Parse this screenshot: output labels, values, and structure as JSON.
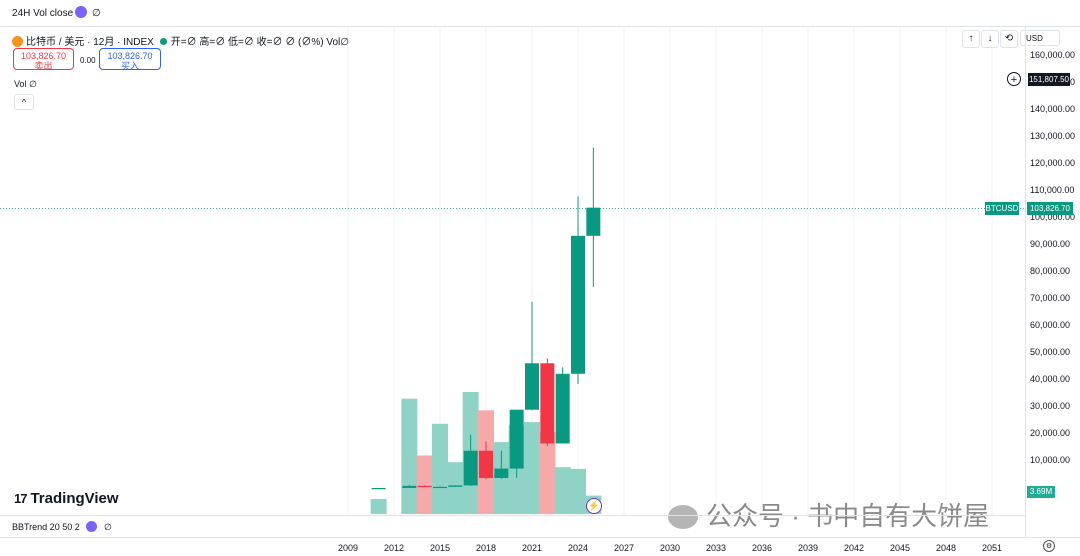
{
  "topbar": {
    "title": "24H Vol close",
    "value": "∅"
  },
  "legend": {
    "symbol": "比特币 / 美元 · 12月 · INDEX",
    "ohlc": "开=∅ 高=∅ 低=∅ 收=∅ ∅ (∅%) Vol∅",
    "sell_price": "103,826.70",
    "sell_label": "卖出",
    "spread": "0.00",
    "buy_price": "103,826.70",
    "buy_label": "买入"
  },
  "vol_legend": "Vol ∅",
  "toolbar": {
    "up": "↑",
    "down": "↓",
    "loop": "⟲",
    "currency": "USD"
  },
  "price_axis": {
    "labels": [
      "160,000.00",
      "150,000.00",
      "140,000.00",
      "130,000.00",
      "120,000.00",
      "110,000.00",
      "100,000.00",
      "90,000.00",
      "80,000.00",
      "70,000.00",
      "60,000.00",
      "50,000.00",
      "40,000.00",
      "30,000.00",
      "20,000.00",
      "10,000.00"
    ],
    "crosshair_value": "151,807.50",
    "last_price": "103,826.70",
    "symbol_tag": "BTCUSD",
    "volume_tag": "3.69M"
  },
  "time_axis": [
    "2009",
    "2012",
    "2015",
    "2018",
    "2021",
    "2024",
    "2027",
    "2030",
    "2033",
    "2036",
    "2039",
    "2042",
    "2045",
    "2048",
    "2051"
  ],
  "bottom_indicator": {
    "label": "BBTrend 20 50 2",
    "value": "∅"
  },
  "logo_text": "TradingView",
  "watermark": "公众号 · 书中自有大饼屋",
  "chart_data": {
    "type": "candlestick",
    "price_unit": "USD",
    "ylim": [
      0,
      160000
    ],
    "last_price": 103826.7,
    "candles": [
      {
        "year": 2011,
        "open": 0.3,
        "high": 32,
        "low": 0.3,
        "close": 5,
        "volume": 0.9
      },
      {
        "year": 2013,
        "open": 13,
        "high": 1150,
        "low": 13,
        "close": 800,
        "volume": 6.9
      },
      {
        "year": 2014,
        "open": 800,
        "high": 1000,
        "low": 300,
        "close": 320,
        "volume": 3.5
      },
      {
        "year": 2015,
        "open": 320,
        "high": 500,
        "low": 170,
        "close": 430,
        "volume": 5.4
      },
      {
        "year": 2016,
        "open": 430,
        "high": 1000,
        "low": 360,
        "close": 960,
        "volume": 3.1
      },
      {
        "year": 2017,
        "open": 960,
        "high": 19700,
        "low": 780,
        "close": 13800,
        "volume": 7.3
      },
      {
        "year": 2018,
        "open": 13800,
        "high": 17200,
        "low": 3200,
        "close": 3700,
        "volume": 6.2
      },
      {
        "year": 2019,
        "open": 3700,
        "high": 13800,
        "low": 3400,
        "close": 7200,
        "volume": 4.3
      },
      {
        "year": 2020,
        "open": 7200,
        "high": 29000,
        "low": 3800,
        "close": 29000,
        "volume": 5.3
      },
      {
        "year": 2021,
        "open": 29000,
        "high": 69000,
        "low": 28800,
        "close": 46200,
        "volume": 5.5
      },
      {
        "year": 2022,
        "open": 46200,
        "high": 48000,
        "low": 15500,
        "close": 16500,
        "volume": 4.9
      },
      {
        "year": 2023,
        "open": 16500,
        "high": 44700,
        "low": 16500,
        "close": 42300,
        "volume": 2.8
      },
      {
        "year": 2024,
        "open": 42300,
        "high": 108000,
        "low": 38500,
        "close": 93400,
        "volume": 2.7
      },
      {
        "year": 2025,
        "open": 93400,
        "high": 126000,
        "low": 74500,
        "close": 103826.7,
        "volume": 1.1
      }
    ]
  }
}
